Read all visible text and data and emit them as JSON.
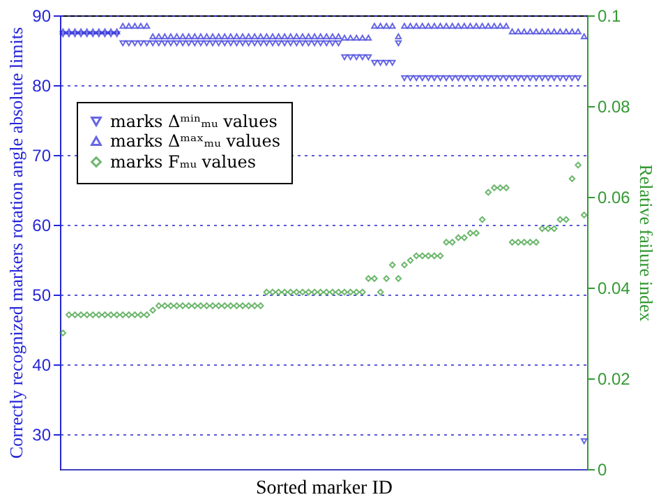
{
  "chart_data": {
    "type": "scatter",
    "xlabel": "Sorted marker ID",
    "ylabel": "Correctly recognized markers rotation angle absolute limits",
    "y2label": "Relative failure index",
    "categories": [
      null,
      null,
      null,
      null,
      null,
      null,
      null,
      null,
      null,
      null,
      null,
      null,
      null,
      null,
      null,
      null,
      null,
      null,
      null,
      null,
      null,
      null,
      null,
      null,
      null,
      null,
      null,
      null,
      null,
      null,
      null,
      null,
      null,
      null,
      null,
      null,
      null,
      null,
      null,
      null,
      null,
      null,
      null,
      null,
      null,
      null,
      null,
      null,
      null,
      null,
      null,
      null,
      null,
      null,
      null,
      null,
      null,
      null,
      null,
      null,
      null,
      null,
      null,
      null,
      null,
      null,
      null,
      null,
      null,
      null,
      null,
      null,
      null,
      null,
      null,
      null,
      null,
      null,
      null,
      null,
      null,
      null,
      null,
      null,
      null,
      null,
      null,
      null
    ],
    "series": [
      {
        "name": "marks Δᵐⁱⁿₘᵤ values",
        "color": "#2626d9",
        "marker": "triangle-down",
        "axis": "y",
        "values": [
          87.3,
          87.3,
          87.3,
          87.3,
          87.3,
          87.3,
          87.3,
          87.3,
          87.3,
          87.3,
          86,
          86,
          86,
          86,
          86,
          86,
          86,
          86,
          86,
          86,
          86,
          86,
          86,
          86,
          86,
          86,
          86,
          86,
          86,
          86,
          86,
          86,
          86,
          86,
          86,
          86,
          86,
          86,
          86,
          86,
          86,
          86,
          86,
          86,
          86,
          86,
          86,
          84,
          84,
          84,
          84,
          84,
          83.2,
          83.2,
          83.2,
          83.2,
          86,
          81,
          81,
          81,
          81,
          81,
          81,
          81,
          81,
          81,
          81,
          81,
          81,
          81,
          81,
          81,
          81,
          81,
          81,
          81,
          81,
          81,
          81,
          81,
          81,
          81,
          81,
          81,
          81,
          81,
          81,
          29
        ]
      },
      {
        "name": "marks Δᵐᵃˣₘᵤ values",
        "color": "#2626d9",
        "marker": "triangle-up",
        "axis": "y",
        "values": [
          87.7,
          87.7,
          87.7,
          87.7,
          87.7,
          87.7,
          87.7,
          87.7,
          87.7,
          87.7,
          88.5,
          88.5,
          88.5,
          88.5,
          88.5,
          87,
          87,
          87,
          87,
          87,
          87,
          87,
          87,
          87,
          87,
          87,
          87,
          87,
          87,
          87,
          87,
          87,
          87,
          87,
          87,
          87,
          87,
          87,
          87,
          87,
          87,
          87,
          87,
          87,
          87,
          87,
          87,
          86.8,
          86.8,
          86.8,
          86.8,
          86.8,
          88.5,
          88.5,
          88.5,
          88.5,
          87,
          88.5,
          88.5,
          88.5,
          88.5,
          88.5,
          88.5,
          88.5,
          88.5,
          88.5,
          88.5,
          88.5,
          88.5,
          88.5,
          88.5,
          88.5,
          88.5,
          88.5,
          88.5,
          87.7,
          87.7,
          87.7,
          87.7,
          87.7,
          87.7,
          87.7,
          87.7,
          87.7,
          87.7,
          87.7,
          87.7,
          87
        ]
      },
      {
        "name": "marks Fₘᵤ values",
        "color": "#339933",
        "marker": "diamond",
        "axis": "y2",
        "values": [
          0.03,
          0.034,
          0.034,
          0.034,
          0.034,
          0.034,
          0.034,
          0.034,
          0.034,
          0.034,
          0.034,
          0.034,
          0.034,
          0.034,
          0.034,
          0.035,
          0.036,
          0.036,
          0.036,
          0.036,
          0.036,
          0.036,
          0.036,
          0.036,
          0.036,
          0.036,
          0.036,
          0.036,
          0.036,
          0.036,
          0.036,
          0.036,
          0.036,
          0.036,
          0.039,
          0.039,
          0.039,
          0.039,
          0.039,
          0.039,
          0.039,
          0.039,
          0.039,
          0.039,
          0.039,
          0.039,
          0.039,
          0.039,
          0.039,
          0.039,
          0.039,
          0.042,
          0.042,
          0.039,
          0.042,
          0.045,
          0.042,
          0.045,
          0.046,
          0.047,
          0.047,
          0.047,
          0.047,
          0.047,
          0.05,
          0.05,
          0.051,
          0.051,
          0.052,
          0.052,
          0.055,
          0.061,
          0.062,
          0.062,
          0.062,
          0.05,
          0.05,
          0.05,
          0.05,
          0.05,
          0.053,
          0.053,
          0.053,
          0.055,
          0.055,
          0.064,
          0.067,
          0.056
        ]
      }
    ],
    "ylim": [
      25,
      90
    ],
    "yticks": [
      30,
      40,
      50,
      60,
      70,
      80,
      90
    ],
    "y2lim": [
      0,
      0.1
    ],
    "y2ticks": [
      0,
      0.02,
      0.04,
      0.06,
      0.08,
      0.1
    ],
    "grid": "y",
    "legend": "top left"
  }
}
